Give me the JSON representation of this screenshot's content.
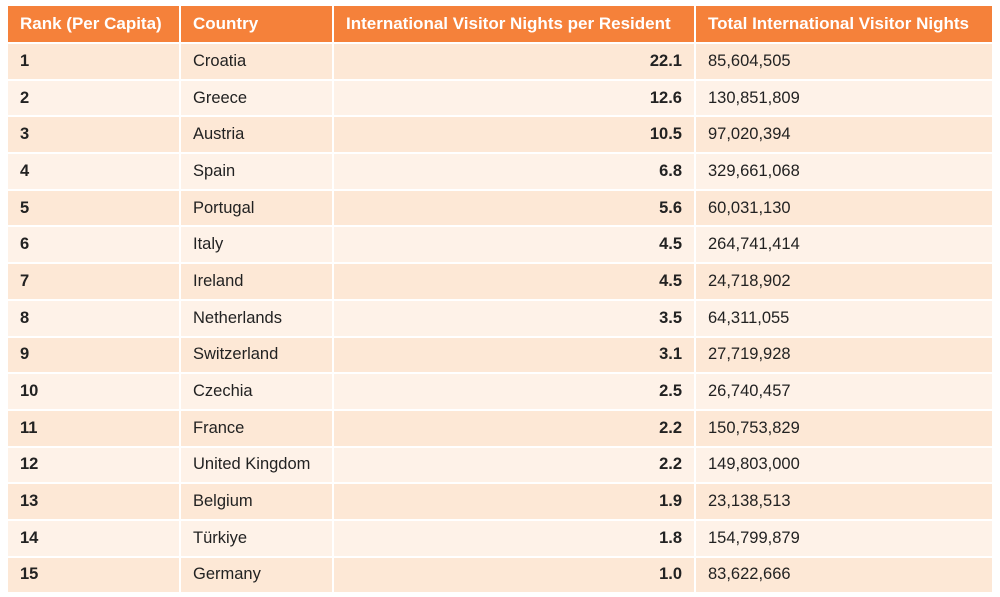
{
  "table": {
    "headers": [
      "Rank (Per Capita)",
      "Country",
      "International Visitor Nights per Resident",
      "Total International Visitor Nights"
    ],
    "rows": [
      {
        "rank": "1",
        "country": "Croatia",
        "per_resident": "22.1",
        "total": "85,604,505"
      },
      {
        "rank": "2",
        "country": "Greece",
        "per_resident": "12.6",
        "total": "130,851,809"
      },
      {
        "rank": "3",
        "country": "Austria",
        "per_resident": "10.5",
        "total": "97,020,394"
      },
      {
        "rank": "4",
        "country": "Spain",
        "per_resident": "6.8",
        "total": "329,661,068"
      },
      {
        "rank": "5",
        "country": "Portugal",
        "per_resident": "5.6",
        "total": "60,031,130"
      },
      {
        "rank": "6",
        "country": "Italy",
        "per_resident": "4.5",
        "total": "264,741,414"
      },
      {
        "rank": "7",
        "country": "Ireland",
        "per_resident": "4.5",
        "total": "24,718,902"
      },
      {
        "rank": "8",
        "country": "Netherlands",
        "per_resident": "3.5",
        "total": "64,311,055"
      },
      {
        "rank": "9",
        "country": "Switzerland",
        "per_resident": "3.1",
        "total": "27,719,928"
      },
      {
        "rank": "10",
        "country": "Czechia",
        "per_resident": "2.5",
        "total": "26,740,457"
      },
      {
        "rank": "11",
        "country": "France",
        "per_resident": "2.2",
        "total": "150,753,829"
      },
      {
        "rank": "12",
        "country": "United Kingdom",
        "per_resident": "2.2",
        "total": "149,803,000"
      },
      {
        "rank": "13",
        "country": "Belgium",
        "per_resident": "1.9",
        "total": "23,138,513"
      },
      {
        "rank": "14",
        "country": "Türkiye",
        "per_resident": "1.8",
        "total": "154,799,879"
      },
      {
        "rank": "15",
        "country": "Germany",
        "per_resident": "1.0",
        "total": "83,622,666"
      }
    ]
  },
  "colors": {
    "header_bg": "#f5813a",
    "row_odd_bg": "#fde8d6",
    "row_even_bg": "#fef2e8"
  }
}
